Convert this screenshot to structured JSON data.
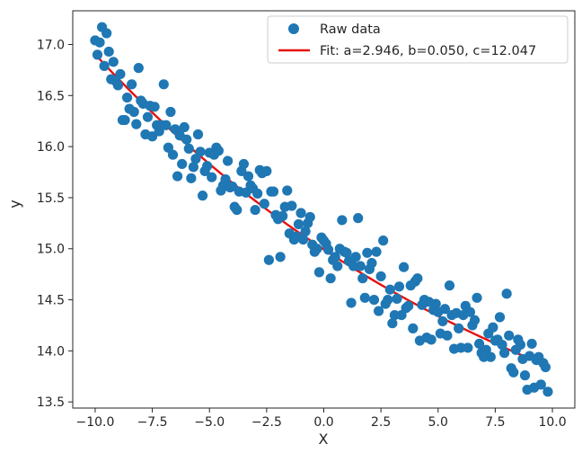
{
  "chart_data": {
    "type": "scatter",
    "xlabel": "X",
    "ylabel": "y",
    "xlim": [
      -10.98,
      10.98
    ],
    "ylim": [
      13.44,
      17.33
    ],
    "xticks": [
      -10.0,
      -7.5,
      -5.0,
      -2.5,
      0.0,
      2.5,
      5.0,
      7.5,
      10.0
    ],
    "xtick_labels": [
      "−10.0",
      "−7.5",
      "−5.0",
      "−2.5",
      "0.0",
      "2.5",
      "5.0",
      "7.5",
      "10.0"
    ],
    "yticks": [
      13.5,
      14.0,
      14.5,
      15.0,
      15.5,
      16.0,
      16.5,
      17.0
    ],
    "ytick_labels": [
      "13.5",
      "14.0",
      "14.5",
      "15.0",
      "15.5",
      "16.0",
      "16.5",
      "17.0"
    ],
    "grid": false,
    "legend_position": "top-right",
    "legend": {
      "raw_label": "Raw data",
      "fit_label": "Fit: a=2.946, b=0.050, c=12.047"
    },
    "colors": {
      "raw": "#1f77b4",
      "fit": "#e6110f"
    },
    "fit_model": {
      "a": 2.946,
      "b": 0.05,
      "c": 12.047
    },
    "series": [
      {
        "name": "Raw data",
        "kind": "scatter",
        "points": [
          [
            -10.0,
            17.04
          ],
          [
            -9.9,
            16.9
          ],
          [
            -9.8,
            17.02
          ],
          [
            -9.7,
            17.17
          ],
          [
            -9.6,
            16.79
          ],
          [
            -9.5,
            17.11
          ],
          [
            -9.4,
            16.93
          ],
          [
            -9.3,
            16.66
          ],
          [
            -9.2,
            16.83
          ],
          [
            -9.1,
            16.64
          ],
          [
            -9.0,
            16.6
          ],
          [
            -8.9,
            16.71
          ],
          [
            -8.8,
            16.26
          ],
          [
            -8.7,
            16.26
          ],
          [
            -8.6,
            16.48
          ],
          [
            -8.5,
            16.37
          ],
          [
            -8.4,
            16.61
          ],
          [
            -8.3,
            16.34
          ],
          [
            -8.2,
            16.22
          ],
          [
            -8.1,
            16.77
          ],
          [
            -8.0,
            16.45
          ],
          [
            -7.9,
            16.42
          ],
          [
            -7.8,
            16.12
          ],
          [
            -7.7,
            16.29
          ],
          [
            -7.6,
            16.4
          ],
          [
            -7.5,
            16.1
          ],
          [
            -7.4,
            16.39
          ],
          [
            -7.3,
            16.21
          ],
          [
            -7.2,
            16.15
          ],
          [
            -7.1,
            16.21
          ],
          [
            -7.0,
            16.61
          ],
          [
            -6.9,
            16.21
          ],
          [
            -6.8,
            15.99
          ],
          [
            -6.7,
            16.34
          ],
          [
            -6.6,
            15.92
          ],
          [
            -6.5,
            16.17
          ],
          [
            -6.4,
            15.71
          ],
          [
            -6.3,
            16.11
          ],
          [
            -6.2,
            15.83
          ],
          [
            -6.1,
            16.19
          ],
          [
            -6.0,
            16.07
          ],
          [
            -5.9,
            15.98
          ],
          [
            -5.8,
            15.69
          ],
          [
            -5.7,
            15.8
          ],
          [
            -5.6,
            15.88
          ],
          [
            -5.5,
            16.12
          ],
          [
            -5.4,
            15.95
          ],
          [
            -5.3,
            15.52
          ],
          [
            -5.2,
            15.76
          ],
          [
            -5.1,
            15.81
          ],
          [
            -5.0,
            15.94
          ],
          [
            -4.9,
            15.7
          ],
          [
            -4.8,
            15.92
          ],
          [
            -4.7,
            15.99
          ],
          [
            -4.6,
            15.96
          ],
          [
            -4.5,
            15.57
          ],
          [
            -4.4,
            15.62
          ],
          [
            -4.3,
            15.68
          ],
          [
            -4.2,
            15.86
          ],
          [
            -4.1,
            15.6
          ],
          [
            -4.0,
            15.61
          ],
          [
            -3.9,
            15.41
          ],
          [
            -3.8,
            15.38
          ],
          [
            -3.7,
            15.56
          ],
          [
            -3.6,
            15.76
          ],
          [
            -3.5,
            15.83
          ],
          [
            -3.4,
            15.55
          ],
          [
            -3.3,
            15.71
          ],
          [
            -3.2,
            15.62
          ],
          [
            -3.1,
            15.59
          ],
          [
            -3.0,
            15.38
          ],
          [
            -2.9,
            15.54
          ],
          [
            -2.8,
            15.77
          ],
          [
            -2.7,
            15.74
          ],
          [
            -2.6,
            15.44
          ],
          [
            -2.5,
            15.76
          ],
          [
            -2.4,
            14.89
          ],
          [
            -2.3,
            15.56
          ],
          [
            -2.2,
            15.56
          ],
          [
            -2.1,
            15.33
          ],
          [
            -2.0,
            15.29
          ],
          [
            -1.9,
            14.92
          ],
          [
            -1.8,
            15.32
          ],
          [
            -1.7,
            15.41
          ],
          [
            -1.6,
            15.57
          ],
          [
            -1.5,
            15.15
          ],
          [
            -1.4,
            15.42
          ],
          [
            -1.3,
            15.09
          ],
          [
            -1.2,
            15.12
          ],
          [
            -1.1,
            15.24
          ],
          [
            -1.0,
            15.35
          ],
          [
            -0.9,
            15.09
          ],
          [
            -0.8,
            15.17
          ],
          [
            -0.7,
            15.25
          ],
          [
            -0.6,
            15.31
          ],
          [
            -0.5,
            15.04
          ],
          [
            -0.4,
            14.97
          ],
          [
            -0.3,
            15.0
          ],
          [
            -0.2,
            14.77
          ],
          [
            -0.1,
            15.11
          ],
          [
            0.0,
            15.08
          ],
          [
            0.1,
            15.05
          ],
          [
            0.2,
            14.99
          ],
          [
            0.3,
            14.71
          ],
          [
            0.4,
            14.89
          ],
          [
            0.5,
            14.92
          ],
          [
            0.6,
            14.83
          ],
          [
            0.7,
            15.0
          ],
          [
            0.8,
            15.28
          ],
          [
            0.9,
            14.97
          ],
          [
            1.0,
            14.96
          ],
          [
            1.1,
            14.88
          ],
          [
            1.2,
            14.47
          ],
          [
            1.3,
            14.83
          ],
          [
            1.4,
            14.92
          ],
          [
            1.5,
            15.3
          ],
          [
            1.6,
            14.83
          ],
          [
            1.7,
            14.71
          ],
          [
            1.8,
            14.52
          ],
          [
            1.9,
            14.96
          ],
          [
            2.0,
            14.8
          ],
          [
            2.1,
            14.86
          ],
          [
            2.2,
            14.5
          ],
          [
            2.3,
            14.97
          ],
          [
            2.4,
            14.39
          ],
          [
            2.5,
            14.73
          ],
          [
            2.6,
            15.08
          ],
          [
            2.7,
            14.46
          ],
          [
            2.8,
            14.5
          ],
          [
            2.9,
            14.6
          ],
          [
            3.0,
            14.27
          ],
          [
            3.1,
            14.35
          ],
          [
            3.2,
            14.51
          ],
          [
            3.3,
            14.63
          ],
          [
            3.4,
            14.35
          ],
          [
            3.5,
            14.82
          ],
          [
            3.6,
            14.42
          ],
          [
            3.7,
            14.44
          ],
          [
            3.8,
            14.64
          ],
          [
            3.9,
            14.22
          ],
          [
            4.0,
            14.68
          ],
          [
            4.1,
            14.71
          ],
          [
            4.2,
            14.1
          ],
          [
            4.3,
            14.45
          ],
          [
            4.4,
            14.5
          ],
          [
            4.5,
            14.13
          ],
          [
            4.6,
            14.48
          ],
          [
            4.7,
            14.11
          ],
          [
            4.8,
            14.4
          ],
          [
            4.9,
            14.46
          ],
          [
            5.0,
            14.38
          ],
          [
            5.1,
            14.17
          ],
          [
            5.2,
            14.29
          ],
          [
            5.3,
            14.41
          ],
          [
            5.4,
            14.15
          ],
          [
            5.5,
            14.64
          ],
          [
            5.6,
            14.35
          ],
          [
            5.7,
            14.02
          ],
          [
            5.8,
            14.37
          ],
          [
            5.9,
            14.22
          ],
          [
            6.0,
            14.03
          ],
          [
            6.1,
            14.35
          ],
          [
            6.2,
            14.44
          ],
          [
            6.3,
            14.03
          ],
          [
            6.4,
            14.38
          ],
          [
            6.5,
            14.25
          ],
          [
            6.6,
            14.3
          ],
          [
            6.7,
            14.52
          ],
          [
            6.8,
            14.07
          ],
          [
            6.9,
            13.98
          ],
          [
            7.0,
            13.94
          ],
          [
            7.1,
            14.01
          ],
          [
            7.2,
            14.17
          ],
          [
            7.3,
            13.94
          ],
          [
            7.4,
            14.23
          ],
          [
            7.5,
            14.1
          ],
          [
            7.6,
            14.11
          ],
          [
            7.7,
            14.33
          ],
          [
            7.8,
            14.06
          ],
          [
            7.9,
            13.98
          ],
          [
            8.0,
            14.56
          ],
          [
            8.1,
            14.15
          ],
          [
            8.2,
            13.83
          ],
          [
            8.3,
            13.79
          ],
          [
            8.4,
            14.01
          ],
          [
            8.5,
            14.11
          ],
          [
            8.6,
            14.06
          ],
          [
            8.7,
            13.92
          ],
          [
            8.8,
            13.76
          ],
          [
            8.9,
            13.62
          ],
          [
            9.0,
            13.95
          ],
          [
            9.1,
            14.07
          ],
          [
            9.2,
            13.64
          ],
          [
            9.3,
            13.91
          ],
          [
            9.4,
            13.94
          ],
          [
            9.5,
            13.67
          ],
          [
            9.6,
            13.88
          ],
          [
            9.7,
            13.84
          ],
          [
            9.8,
            13.6
          ]
        ]
      },
      {
        "name": "Fit: a=2.946, b=0.050, c=12.047",
        "kind": "line",
        "x_range": [
          -10.0,
          9.8
        ]
      }
    ]
  }
}
